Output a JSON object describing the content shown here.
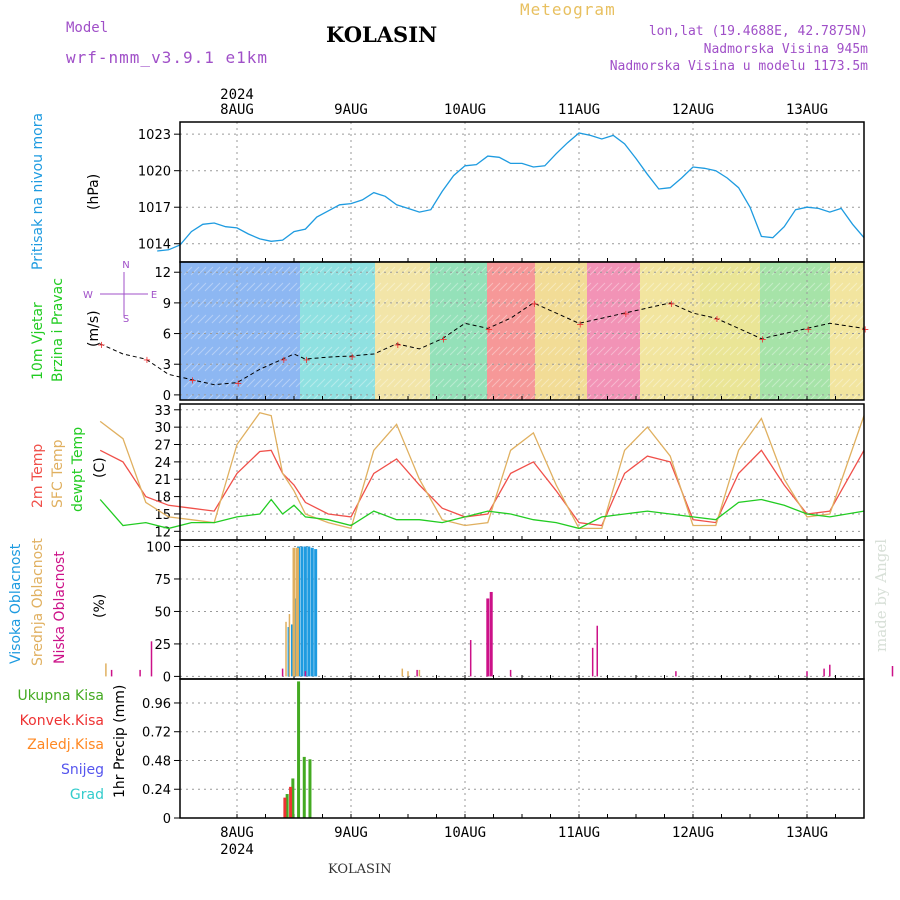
{
  "header": {
    "model_label": "Model",
    "model_name": "wrf-nmm_v3.9.1 e1km",
    "location": "KOLASIN",
    "product": "Meteogram",
    "coords": "lon,lat (19.4688E, 42.7875N)",
    "elevation": "Nadmorska Visina 945m",
    "model_elevation": "Nadmorska Visina u modelu 1173.5m",
    "footer_location": "KOLASIN",
    "credit": "made by Angel"
  },
  "colors": {
    "pressure": "#1e9be0",
    "temp2m": "#f0504a",
    "sfc_temp": "#e0b060",
    "dewpt": "#22cc22",
    "cloud_high": "#1e9be0",
    "cloud_mid": "#e0b060",
    "cloud_low": "#cc1188",
    "precip_total": "#44aa22",
    "precip_conv": "#ee3333",
    "precip_frozen": "#ff8822",
    "snow": "#5555ee",
    "grad": "#33cccc",
    "grid": "#9a9a9a",
    "title_orange": "#e8c060",
    "model_purple": "#a050c8"
  },
  "time_axis": {
    "year": "2024",
    "days": [
      "8AUG",
      "9AUG",
      "10AUG",
      "11AUG",
      "12AUG",
      "13AUG"
    ],
    "start_hour_offset": -1.2,
    "end_hour_offset": 5.5
  },
  "chart_data": [
    {
      "type": "line",
      "panel": "pressure",
      "ylabel_side": "Pritisak na nivou mora",
      "unit": "(hPa)",
      "yticks": [
        1014,
        1017,
        1020,
        1023
      ],
      "ylim": [
        1012.5,
        1024
      ],
      "series": [
        {
          "x": [
            -0.7,
            -0.6,
            -0.5,
            -0.4,
            -0.3,
            -0.2,
            -0.1,
            0.0,
            0.1,
            0.2,
            0.3,
            0.4,
            0.5,
            0.6,
            0.7,
            0.8,
            0.9,
            1.0,
            1.1,
            1.2,
            1.3,
            1.4,
            1.5,
            1.6,
            1.7,
            1.8,
            1.9,
            2.0,
            2.1,
            2.2,
            2.3,
            2.4,
            2.5,
            2.6,
            2.7,
            2.8,
            2.9,
            3.0,
            3.1,
            3.2,
            3.3,
            3.4,
            3.5,
            3.6,
            3.7,
            3.8,
            3.9,
            4.0,
            4.1,
            4.2,
            4.3,
            4.4,
            4.5,
            4.6,
            4.7,
            4.8,
            4.9,
            5.0,
            5.1,
            5.2,
            5.3,
            5.4,
            5.5
          ],
          "y": [
            1013.4,
            1013.5,
            1013.9,
            1015.0,
            1015.6,
            1015.7,
            1015.4,
            1015.3,
            1014.8,
            1014.4,
            1014.2,
            1014.3,
            1015.0,
            1015.2,
            1016.2,
            1016.7,
            1017.2,
            1017.3,
            1017.6,
            1018.2,
            1017.9,
            1017.2,
            1016.9,
            1016.6,
            1016.8,
            1018.3,
            1019.6,
            1020.4,
            1020.5,
            1021.2,
            1021.1,
            1020.6,
            1020.6,
            1020.3,
            1020.4,
            1021.4,
            1022.3,
            1023.1,
            1022.9,
            1022.6,
            1022.9,
            1022.2,
            1021.0,
            1019.7,
            1018.5,
            1018.6,
            1019.4,
            1020.3,
            1020.2,
            1020.0,
            1019.4,
            1018.6,
            1017.0,
            1014.6,
            1014.5,
            1015.4,
            1016.8,
            1017.0,
            1016.9,
            1016.6,
            1016.9,
            1015.6,
            1014.5
          ]
        }
      ]
    },
    {
      "type": "line",
      "panel": "wind",
      "ylabel_side_1": "10m Vjetar",
      "ylabel_side_2": "Brzina i Pravac",
      "unit": "(m/s)",
      "compass": {
        "n": "N",
        "w": "W",
        "e": "E",
        "s": "S"
      },
      "yticks": [
        0,
        3,
        6,
        9,
        12
      ],
      "ylim": [
        -0.5,
        13
      ],
      "series": [
        {
          "name": "10m wind speed",
          "x": [
            -1.2,
            -1.0,
            -0.8,
            -0.6,
            -0.4,
            -0.2,
            0.0,
            0.2,
            0.4,
            0.5,
            0.6,
            0.8,
            1.0,
            1.2,
            1.4,
            1.6,
            1.8,
            2.0,
            2.2,
            2.4,
            2.6,
            2.8,
            3.0,
            3.2,
            3.4,
            3.6,
            3.8,
            4.0,
            4.2,
            4.4,
            4.6,
            4.8,
            5.0,
            5.2,
            5.5
          ],
          "y": [
            5,
            4,
            3.5,
            2,
            1.5,
            1,
            1.2,
            2.5,
            3.5,
            4,
            3.5,
            3.7,
            3.8,
            4,
            5,
            4.5,
            5.5,
            7,
            6.5,
            7.5,
            9,
            8,
            7,
            7.5,
            8,
            8.5,
            9,
            8,
            7.5,
            6.5,
            5.5,
            6,
            6.5,
            7,
            6.5
          ]
        }
      ]
    },
    {
      "type": "line",
      "panel": "temperature",
      "ylabel_side_1": "2m Temp",
      "ylabel_side_2": "SFC Temp",
      "ylabel_side_3": "dewpt Temp",
      "unit": "(C)",
      "yticks": [
        12,
        15,
        18,
        21,
        24,
        27,
        30,
        33
      ],
      "ylim": [
        10.5,
        34
      ],
      "series": [
        {
          "name": "2m Temp",
          "x": [
            -1.2,
            -1.0,
            -0.8,
            -0.6,
            -0.4,
            -0.2,
            0.0,
            0.2,
            0.3,
            0.4,
            0.5,
            0.6,
            0.8,
            1.0,
            1.2,
            1.4,
            1.6,
            1.8,
            2.0,
            2.2,
            2.4,
            2.6,
            2.8,
            3.0,
            3.2,
            3.4,
            3.6,
            3.8,
            4.0,
            4.2,
            4.4,
            4.6,
            4.8,
            5.0,
            5.2,
            5.5
          ],
          "y": [
            26,
            24,
            18,
            16.5,
            16,
            15.5,
            22,
            25.8,
            26,
            22,
            20,
            17,
            15,
            14.5,
            22,
            24.5,
            20,
            16,
            14.5,
            15,
            22,
            24,
            19,
            13.5,
            13,
            22,
            25,
            24,
            14,
            13.5,
            22,
            26,
            20,
            15,
            15.5,
            26
          ]
        },
        {
          "name": "SFC Temp",
          "x": [
            -1.2,
            -1.0,
            -0.8,
            -0.6,
            -0.4,
            -0.2,
            0.0,
            0.2,
            0.3,
            0.4,
            0.5,
            0.6,
            0.8,
            1.0,
            1.2,
            1.4,
            1.6,
            1.8,
            2.0,
            2.2,
            2.4,
            2.6,
            2.8,
            3.0,
            3.2,
            3.4,
            3.6,
            3.8,
            4.0,
            4.2,
            4.4,
            4.6,
            4.8,
            5.0,
            5.2,
            5.5
          ],
          "y": [
            31,
            28,
            17,
            14.5,
            14,
            13.5,
            27,
            32.5,
            32,
            22,
            19,
            15,
            13.5,
            12.5,
            26,
            30.5,
            21,
            14,
            13,
            13.5,
            26,
            29,
            20,
            12.5,
            12.5,
            26,
            30,
            25,
            13,
            13,
            26,
            31.5,
            21,
            14.5,
            15,
            32
          ]
        },
        {
          "name": "dewpt Temp",
          "x": [
            -1.2,
            -1.0,
            -0.8,
            -0.6,
            -0.4,
            -0.2,
            0.0,
            0.2,
            0.3,
            0.4,
            0.5,
            0.6,
            0.8,
            1.0,
            1.2,
            1.4,
            1.6,
            1.8,
            2.0,
            2.2,
            2.4,
            2.6,
            2.8,
            3.0,
            3.2,
            3.4,
            3.6,
            3.8,
            4.0,
            4.2,
            4.4,
            4.6,
            4.8,
            5.0,
            5.2,
            5.5
          ],
          "y": [
            17.5,
            13,
            13.5,
            12.5,
            13.5,
            13.5,
            14.5,
            15,
            17.5,
            15,
            16.5,
            14.5,
            14,
            13,
            15.5,
            14,
            14,
            13.5,
            14.5,
            15.5,
            15,
            14,
            13.5,
            12.5,
            14.5,
            15,
            15.5,
            15,
            14.5,
            14,
            17,
            17.5,
            16.5,
            15,
            14.5,
            15.5
          ]
        }
      ]
    },
    {
      "type": "bar",
      "panel": "clouds",
      "ylabel_side_1": "Visoka Oblacnost",
      "ylabel_side_2": "Srednja Oblacnost",
      "ylabel_side_3": "Niska Oblacnost",
      "unit": "(%)",
      "yticks": [
        0,
        25,
        50,
        75,
        100
      ],
      "ylim": [
        -2,
        105
      ],
      "series": [
        {
          "name": "Visoka Oblacnost",
          "x": [
            0.45,
            0.48,
            0.51,
            0.54,
            0.57,
            0.6,
            0.63,
            0.66,
            0.69
          ],
          "y": [
            38,
            40,
            60,
            100,
            100,
            100,
            100,
            99,
            98
          ]
        },
        {
          "name": "Srednja Oblacnost",
          "x": [
            -1.15,
            0.43,
            0.46,
            0.5,
            0.53,
            1.45,
            1.5,
            1.6
          ],
          "y": [
            10,
            42,
            48,
            99,
            99,
            6,
            4,
            5
          ]
        },
        {
          "name": "Niska Oblacnost",
          "x": [
            -1.1,
            -0.85,
            -0.75,
            0.4,
            0.6,
            1.58,
            2.05,
            2.2,
            2.23,
            2.4,
            3.12,
            3.16,
            3.85,
            5.0,
            5.15,
            5.2,
            5.75
          ],
          "y": [
            5,
            5,
            27,
            6,
            4,
            5,
            28,
            60,
            65,
            5,
            22,
            39,
            4,
            4,
            6,
            9,
            8
          ]
        }
      ]
    },
    {
      "type": "bar",
      "panel": "precip",
      "legend_1": "Ukupna Kisa",
      "legend_2": "Konvek.Kisa",
      "legend_3": "Zaledj.Kisa",
      "legend_4": "Snijeg",
      "legend_5": "Grad",
      "unit": "1hr Precip (mm)",
      "yticks": [
        0,
        0.24,
        0.48,
        0.72,
        0.96
      ],
      "ylim": [
        0,
        1.16
      ],
      "series": [
        {
          "name": "Ukupna Kisa",
          "x": [
            0.44,
            0.49,
            0.54,
            0.59,
            0.64
          ],
          "y": [
            0.2,
            0.33,
            1.14,
            0.51,
            0.49
          ]
        },
        {
          "name": "Konvek.Kisa",
          "x": [
            0.42,
            0.47
          ],
          "y": [
            0.17,
            0.26
          ]
        }
      ]
    }
  ]
}
